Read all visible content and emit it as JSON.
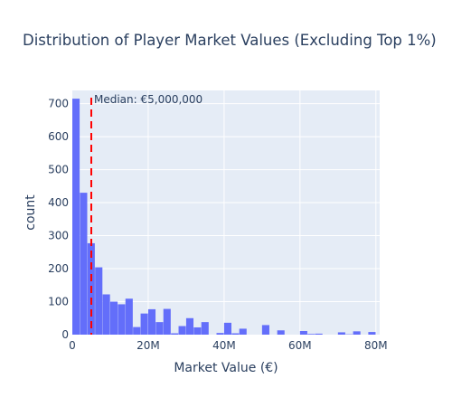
{
  "chart_data": {
    "type": "bar",
    "title": "Distribution of Player Market Values (Excluding Top 1%)",
    "xlabel": "Market Value (€)",
    "ylabel": "count",
    "xlim": [
      0,
      81000000
    ],
    "ylim": [
      0,
      740
    ],
    "bin_width": 2000000,
    "bin_starts": [
      0,
      2000000,
      4000000,
      6000000,
      8000000,
      10000000,
      12000000,
      14000000,
      16000000,
      18000000,
      20000000,
      22000000,
      24000000,
      26000000,
      28000000,
      30000000,
      32000000,
      34000000,
      36000000,
      38000000,
      40000000,
      42000000,
      44000000,
      46000000,
      48000000,
      50000000,
      52000000,
      54000000,
      56000000,
      58000000,
      60000000,
      62000000,
      64000000,
      66000000,
      68000000,
      70000000,
      72000000,
      74000000,
      76000000,
      78000000
    ],
    "values": [
      715,
      430,
      277,
      204,
      122,
      100,
      92,
      109,
      23,
      64,
      77,
      38,
      78,
      4,
      26,
      50,
      22,
      38,
      0,
      5,
      36,
      4,
      18,
      0,
      0,
      29,
      0,
      13,
      0,
      0,
      11,
      2,
      3,
      0,
      0,
      7,
      1,
      10,
      0,
      8
    ],
    "x_ticks": [
      {
        "value": 0,
        "label": "0"
      },
      {
        "value": 20000000,
        "label": "20M"
      },
      {
        "value": 40000000,
        "label": "40M"
      },
      {
        "value": 60000000,
        "label": "60M"
      },
      {
        "value": 80000000,
        "label": "80M"
      }
    ],
    "y_ticks": [
      0,
      100,
      200,
      300,
      400,
      500,
      600,
      700
    ],
    "median": {
      "value": 5000000,
      "label": "Median: €5,000,000"
    },
    "grid": true,
    "colors": {
      "bar": "#636efa",
      "plot_bg": "#e5ecf6",
      "grid": "#ffffff",
      "median_line": "#ff0000",
      "text": "#2a3f5f"
    }
  }
}
